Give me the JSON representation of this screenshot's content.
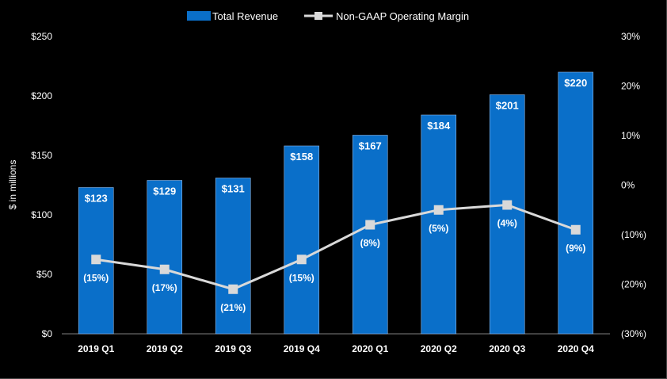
{
  "chart_data": {
    "type": "bar",
    "categories": [
      "2019 Q1",
      "2019 Q2",
      "2019 Q3",
      "2019 Q4",
      "2020 Q1",
      "2020 Q2",
      "2020 Q3",
      "2020 Q4"
    ],
    "series": [
      {
        "name": "Total Revenue",
        "type": "bar",
        "axis": "left",
        "values": [
          123,
          129,
          131,
          158,
          167,
          184,
          201,
          220
        ],
        "labels": [
          "$123",
          "$129",
          "$131",
          "$158",
          "$167",
          "$184",
          "$201",
          "$220"
        ],
        "color": "#0a6fc9"
      },
      {
        "name": "Non-GAAP Operating Margin",
        "type": "line",
        "axis": "right",
        "values": [
          -15,
          -17,
          -21,
          -15,
          -8,
          -5,
          -4,
          -9
        ],
        "labels": [
          "(15%)",
          "(17%)",
          "(21%)",
          "(15%)",
          "(8%)",
          "(5%)",
          "(4%)",
          "(9%)"
        ],
        "color": "#d9d9d9"
      }
    ],
    "ylabel": "$ in millions",
    "ylim": [
      0,
      250
    ],
    "y_ticks": [
      "$0",
      "$50",
      "$100",
      "$150",
      "$200",
      "$250"
    ],
    "y2lim": [
      -30,
      30
    ],
    "y2_ticks": [
      "(30%)",
      "(20%)",
      "(10%)",
      "0%",
      "10%",
      "20%",
      "30%"
    ],
    "legend_position": "top-center",
    "grid": false
  },
  "colors": {
    "background": "#000000",
    "bar": "#0a6fc9",
    "line": "#d9d9d9",
    "text": "#ffffff"
  }
}
